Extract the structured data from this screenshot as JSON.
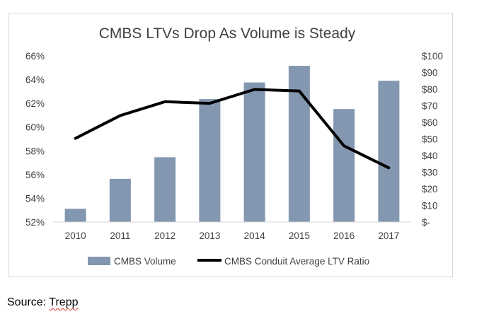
{
  "chart_data": {
    "type": "bar+line",
    "title": "CMBS LTVs Drop As Volume is Steady",
    "categories": [
      "2010",
      "2011",
      "2012",
      "2013",
      "2014",
      "2015",
      "2016",
      "2017"
    ],
    "series": [
      {
        "name": "CMBS Volume",
        "type": "bar",
        "axis": "right",
        "color": "#8497b0",
        "values": [
          8,
          26,
          39,
          74,
          84,
          94,
          68,
          85
        ]
      },
      {
        "name": "CMBS Conduit Average LTV Ratio",
        "type": "line",
        "axis": "left",
        "color": "#000000",
        "values": [
          0.5905,
          0.6097,
          0.6214,
          0.62,
          0.6317,
          0.6304,
          0.5842,
          0.5657
        ]
      }
    ],
    "y_left": {
      "range": [
        0.52,
        0.66
      ],
      "ticks": [
        0.52,
        0.54,
        0.56,
        0.58,
        0.6,
        0.62,
        0.64,
        0.66
      ],
      "tick_labels": [
        "52%",
        "54%",
        "56%",
        "58%",
        "60%",
        "62%",
        "64%",
        "66%"
      ]
    },
    "y_right": {
      "range": [
        0,
        100
      ],
      "ticks": [
        0,
        10,
        20,
        30,
        40,
        50,
        60,
        70,
        80,
        90,
        100
      ],
      "tick_labels": [
        "$-",
        "$10",
        "$20",
        "$30",
        "$40",
        "$50",
        "$60",
        "$70",
        "$80",
        "$90",
        "$100"
      ]
    },
    "grid": false,
    "legend_position": "bottom"
  },
  "source": {
    "prefix": "Source: ",
    "name": "Trepp"
  }
}
